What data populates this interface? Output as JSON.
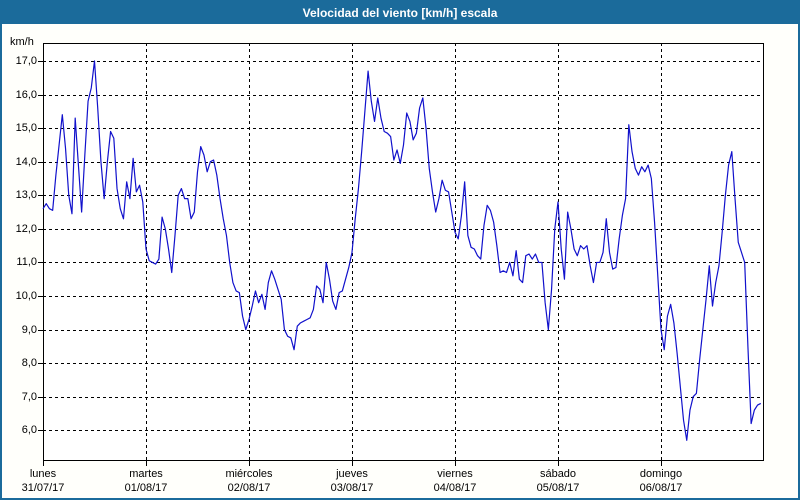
{
  "window": {
    "title": "Velocidad del viento [km/h] escala"
  },
  "colors": {
    "frame": "#1b6b9b",
    "title_bg": "#1b6b9b",
    "title_text": "#ffffff",
    "content_bg": "#fffffb",
    "plot_bg": "#ffffff",
    "plot_border": "#000000",
    "grid": "#000000",
    "line": "#1111cc",
    "label_text": "#000000"
  },
  "chart_data": {
    "type": "line",
    "title": "Velocidad del viento [km/h] escala",
    "ylabel": "km/h",
    "xlabel": "",
    "grid": "dashed",
    "legend": "none",
    "ylim": [
      5.1,
      17.55
    ],
    "y_axis": {
      "label": "km/h",
      "tick_labels": [
        "17,0",
        "16,0",
        "15,0",
        "14,0",
        "13,0",
        "12,0",
        "11,0",
        "10,0",
        "9,0",
        "8,0",
        "7,0",
        "6,0"
      ],
      "tick_values": [
        17,
        16,
        15,
        14,
        13,
        12,
        11,
        10,
        9,
        8,
        7,
        6
      ]
    },
    "x_axis": {
      "days": [
        {
          "name": "lunes",
          "date": "31/07/17"
        },
        {
          "name": "martes",
          "date": "01/08/17"
        },
        {
          "name": "miércoles",
          "date": "02/08/17"
        },
        {
          "name": "jueves",
          "date": "03/08/17"
        },
        {
          "name": "viernes",
          "date": "04/08/17"
        },
        {
          "name": "sábado",
          "date": "05/08/17"
        },
        {
          "name": "domingo",
          "date": "06/08/17"
        }
      ]
    },
    "series": [
      {
        "name": "Velocidad del viento",
        "unit": "km/h",
        "color": "#1111cc",
        "samples_per_day": 32,
        "values": [
          12.6,
          12.75,
          12.6,
          12.55,
          13.6,
          14.5,
          15.4,
          14.4,
          13.0,
          12.45,
          15.3,
          13.9,
          12.5,
          14.2,
          15.8,
          16.2,
          17.0,
          15.6,
          14.0,
          12.9,
          14.0,
          14.9,
          14.7,
          13.2,
          12.6,
          12.3,
          13.4,
          12.9,
          14.1,
          13.1,
          13.3,
          12.8,
          11.4,
          11.05,
          11.0,
          10.95,
          11.1,
          12.35,
          12.0,
          11.4,
          10.7,
          11.8,
          13.0,
          13.2,
          12.9,
          12.9,
          12.3,
          12.5,
          13.7,
          14.45,
          14.2,
          13.7,
          14.0,
          14.05,
          13.6,
          12.9,
          12.3,
          11.8,
          11.0,
          10.4,
          10.15,
          10.1,
          9.4,
          9.0,
          9.3,
          9.7,
          10.15,
          9.8,
          10.05,
          9.6,
          10.4,
          10.75,
          10.5,
          10.2,
          9.9,
          9.0,
          8.8,
          8.75,
          8.4,
          9.1,
          9.2,
          9.25,
          9.3,
          9.35,
          9.6,
          10.3,
          10.2,
          9.8,
          11.0,
          10.5,
          9.85,
          9.6,
          10.1,
          10.15,
          10.5,
          10.85,
          11.3,
          12.3,
          13.2,
          14.3,
          15.5,
          16.7,
          15.8,
          15.2,
          15.9,
          15.3,
          14.9,
          14.85,
          14.75,
          14.05,
          14.35,
          13.95,
          14.5,
          15.45,
          15.2,
          14.65,
          14.85,
          15.6,
          15.9,
          15.0,
          13.8,
          13.1,
          12.5,
          12.9,
          13.45,
          13.15,
          13.1,
          12.5,
          11.9,
          11.7,
          12.4,
          13.4,
          11.8,
          11.45,
          11.4,
          11.2,
          11.1,
          12.1,
          12.7,
          12.55,
          12.2,
          11.5,
          10.7,
          10.75,
          10.7,
          11.0,
          10.6,
          11.35,
          10.5,
          10.4,
          11.2,
          11.25,
          11.1,
          11.25,
          11.0,
          11.0,
          9.8,
          9.0,
          10.2,
          12.0,
          12.8,
          11.4,
          10.5,
          12.5,
          12.0,
          11.4,
          11.2,
          11.5,
          11.4,
          11.5,
          10.9,
          10.4,
          11.0,
          11.0,
          11.3,
          12.3,
          11.3,
          10.8,
          10.85,
          11.7,
          12.4,
          12.9,
          15.1,
          14.3,
          13.8,
          13.6,
          13.85,
          13.7,
          13.9,
          13.5,
          12.2,
          10.6,
          9.0,
          8.4,
          9.4,
          9.75,
          9.2,
          8.3,
          7.3,
          6.3,
          5.7,
          6.6,
          7.0,
          7.1,
          8.1,
          9.0,
          9.9,
          10.9,
          9.7,
          10.4,
          10.9,
          11.9,
          13.0,
          13.9,
          14.3,
          12.9,
          11.6,
          11.3,
          11.0,
          8.5,
          6.2,
          6.6,
          6.75,
          6.8
        ]
      }
    ]
  }
}
